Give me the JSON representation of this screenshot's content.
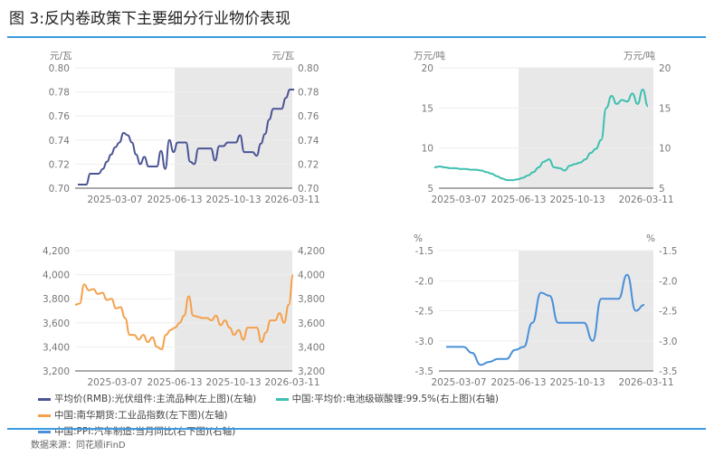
{
  "title": "图 3:反内卷政策下主要细分行业物价表现",
  "source": "数据来源：同花顺iFinD",
  "shade_start": "2025-06-13",
  "chart_data": [
    {
      "type": "line",
      "name": "平均价(RMB):光伏组件:主流品种(左上图)(左轴)",
      "color": "#4a5494",
      "unit_left": "元/瓦",
      "unit_right": "元/瓦",
      "ylim": [
        0.7,
        0.8
      ],
      "yticks": [
        "0.80",
        "0.78",
        "0.76",
        "0.74",
        "0.72",
        "0.70"
      ],
      "xticks": [
        "2025-03-07",
        "2025-06-13",
        "2025-10-13",
        "2026-03-11"
      ],
      "values": [
        0.703,
        0.703,
        0.703,
        0.712,
        0.712,
        0.712,
        0.716,
        0.722,
        0.728,
        0.734,
        0.738,
        0.746,
        0.744,
        0.738,
        0.728,
        0.72,
        0.726,
        0.718,
        0.718,
        0.718,
        0.731,
        0.716,
        0.74,
        0.73,
        0.738,
        0.738,
        0.738,
        0.722,
        0.72,
        0.733,
        0.733,
        0.733,
        0.733,
        0.723,
        0.735,
        0.735,
        0.738,
        0.738,
        0.738,
        0.744,
        0.73,
        0.73,
        0.73,
        0.727,
        0.737,
        0.745,
        0.757,
        0.766,
        0.766,
        0.766,
        0.775,
        0.782,
        0.782
      ]
    },
    {
      "type": "line",
      "name": "中国:平均价:电池级碳酸锂:99.5%(右上图)(右轴)",
      "color": "#3cc0b0",
      "unit_left": "万元/吨",
      "unit_right": "万元/吨",
      "ylim": [
        5,
        20
      ],
      "yticks": [
        "20",
        "15",
        "10",
        "5"
      ],
      "xticks": [
        "2025-03-07",
        "2025-06-13",
        "2025-10-13",
        "2026-03-11"
      ],
      "values": [
        7.6,
        7.7,
        7.6,
        7.5,
        7.5,
        7.4,
        7.4,
        7.3,
        7.3,
        7.2,
        7.0,
        6.8,
        6.5,
        6.2,
        6.0,
        6.0,
        6.1,
        6.3,
        6.6,
        7.0,
        7.6,
        8.3,
        8.6,
        7.6,
        7.5,
        7.2,
        7.8,
        8.0,
        8.2,
        8.6,
        9.4,
        9.9,
        11,
        15,
        16.5,
        15.5,
        16,
        15.8,
        16.8,
        15.5,
        17.3,
        15.2
      ]
    },
    {
      "type": "line",
      "name": "中国:南华期货:工业品指数(左下图)(左轴)",
      "color": "#f5a04a",
      "unit_left": "",
      "unit_right": "",
      "ylim": [
        3200,
        4200
      ],
      "yticks": [
        "4,200",
        "4,000",
        "3,800",
        "3,600",
        "3,400",
        "3,200"
      ],
      "xticks": [
        "2025-03-07",
        "2025-06-13",
        "2025-10-13",
        "2026-03-11"
      ],
      "values": [
        3750,
        3760,
        3920,
        3870,
        3880,
        3840,
        3850,
        3790,
        3800,
        3720,
        3730,
        3640,
        3500,
        3500,
        3460,
        3500,
        3440,
        3480,
        3400,
        3380,
        3500,
        3540,
        3560,
        3600,
        3660,
        3820,
        3660,
        3650,
        3640,
        3640,
        3620,
        3660,
        3580,
        3620,
        3560,
        3500,
        3540,
        3460,
        3560,
        3560,
        3560,
        3440,
        3520,
        3620,
        3620,
        3680,
        3600,
        3750,
        4000
      ]
    },
    {
      "type": "line",
      "name": "中国:PPI:汽车制造:当月同比(右下图)(右轴)",
      "color": "#4a90d9",
      "unit_left": "%",
      "unit_right": "%",
      "ylim": [
        -3.5,
        -1.5
      ],
      "yticks": [
        "-1.5",
        "-2.0",
        "-2.5",
        "-3.0",
        "-3.5"
      ],
      "xticks": [
        "2025-03-07",
        "2025-06-13",
        "2025-10-13",
        "2026-03-11"
      ],
      "values": [
        -3.1,
        -3.1,
        -3.1,
        -3.2,
        -3.4,
        -3.35,
        -3.3,
        -3.3,
        -3.15,
        -3.1,
        -2.7,
        -2.2,
        -2.25,
        -2.7,
        -2.7,
        -2.7,
        -2.7,
        -3.0,
        -2.3,
        -2.3,
        -2.3,
        -1.9,
        -2.5,
        -2.4
      ]
    }
  ]
}
